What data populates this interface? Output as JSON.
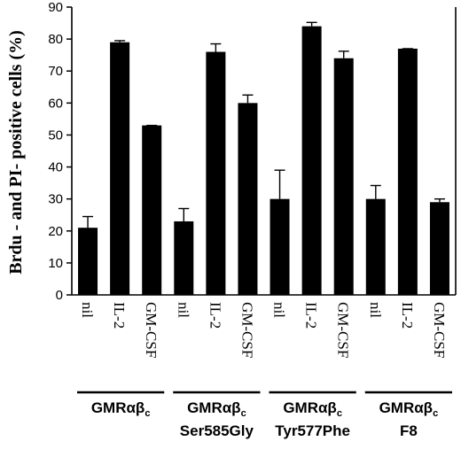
{
  "chart_data": {
    "type": "bar",
    "ylabel": "Brdu - and PI- positive cells (%)",
    "ylim": [
      0,
      90
    ],
    "yticks": [
      0,
      10,
      20,
      30,
      40,
      50,
      60,
      70,
      80,
      90
    ],
    "categories": [
      "nil",
      "IL-2",
      "GM-CSF",
      "nil",
      "IL-2",
      "GM-CSF",
      "nil",
      "IL-2",
      "GM-CSF",
      "nil",
      "IL-2",
      "GM-CSF"
    ],
    "values": [
      21,
      79,
      53,
      23,
      76,
      60,
      30,
      84,
      74,
      30,
      77,
      29
    ],
    "errors": [
      3.5,
      0.5,
      0,
      4,
      2.5,
      2.5,
      9,
      1.2,
      2.2,
      4.2,
      0,
      1
    ],
    "groups": [
      {
        "main": "GMRαβ",
        "sub": "c",
        "line2": ""
      },
      {
        "main": "GMRαβ",
        "sub": "c",
        "line2": "Ser585Gly"
      },
      {
        "main": "GMRαβ",
        "sub": "c",
        "line2": "Tyr577Phe"
      },
      {
        "main": "GMRαβ",
        "sub": "c",
        "line2": "F8"
      }
    ],
    "bar_color": "#000000",
    "grid": false
  }
}
